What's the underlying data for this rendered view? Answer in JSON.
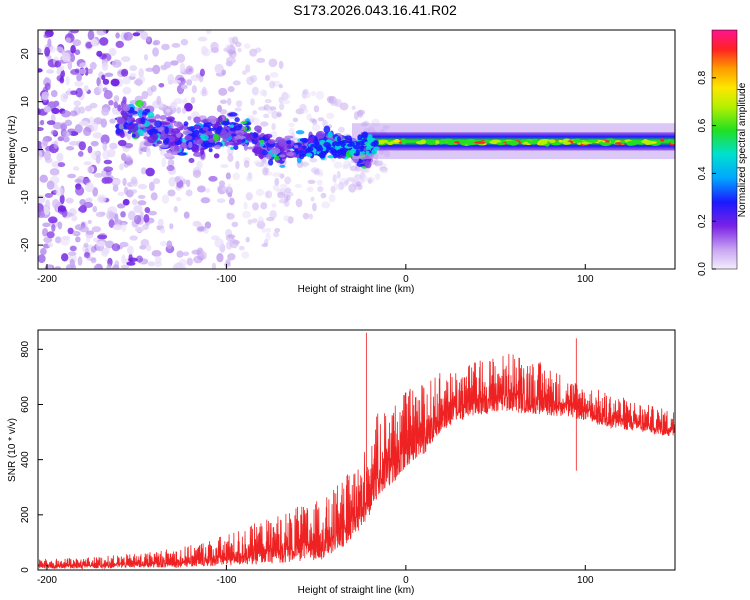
{
  "title": "S173.2026.043.16.41.R02",
  "chart_data": [
    {
      "type": "heatmap",
      "name": "spectrogram",
      "xlabel": "Height of straight line (km)",
      "ylabel": "Frequency (Hz)",
      "xlim": [
        -205,
        150
      ],
      "ylim": [
        -25,
        25
      ],
      "xticks": [
        -200,
        -100,
        0,
        100
      ],
      "yticks": [
        -20,
        -10,
        0,
        10,
        20
      ],
      "colorbar": {
        "label": "Normalized spectral amplitude",
        "range": [
          0,
          1
        ],
        "ticks": [
          0.0,
          0.2,
          0.4,
          0.6,
          0.8
        ]
      },
      "description_regions": [
        {
          "x_range": [
            -205,
            -130
          ],
          "freq_range": [
            -25,
            25
          ],
          "amplitude": 0.15
        },
        {
          "x_range": [
            -160,
            -40
          ],
          "freq_range": [
            -8,
            10
          ],
          "amplitude": 0.3
        },
        {
          "x_range": [
            -40,
            -20
          ],
          "freq_range": [
            -3,
            4
          ],
          "amplitude": 0.4
        },
        {
          "x_range": [
            -20,
            150
          ],
          "freq_range": [
            0,
            3
          ],
          "amplitude": 0.6
        }
      ],
      "peak_frequency_hz": 1.5
    },
    {
      "type": "line",
      "name": "snr",
      "xlabel": "Height of straight line (km)",
      "ylabel": "SNR (10 * v/v)",
      "xlim": [
        -205,
        150
      ],
      "ylim": [
        0,
        870
      ],
      "xticks": [
        -200,
        -100,
        0,
        100
      ],
      "yticks": [
        0,
        200,
        400,
        600,
        800
      ],
      "color": "#ee2222",
      "envelope": {
        "x": [
          -205,
          -180,
          -150,
          -120,
          -100,
          -80,
          -60,
          -45,
          -35,
          -25,
          -20,
          -15,
          -5,
          0,
          10,
          20,
          30,
          40,
          50,
          60,
          70,
          80,
          90,
          100,
          110,
          120,
          130,
          140,
          150
        ],
        "lower": [
          5,
          5,
          8,
          10,
          15,
          20,
          30,
          40,
          80,
          150,
          200,
          260,
          330,
          370,
          420,
          500,
          540,
          560,
          570,
          570,
          565,
          560,
          555,
          540,
          520,
          510,
          500,
          490,
          480
        ],
        "upper": [
          40,
          45,
          60,
          90,
          130,
          180,
          230,
          260,
          330,
          400,
          500,
          580,
          620,
          650,
          680,
          720,
          740,
          760,
          780,
          790,
          770,
          740,
          700,
          670,
          650,
          630,
          610,
          590,
          580
        ]
      },
      "spikes": [
        {
          "x": -22,
          "y": 860
        },
        {
          "x": 95,
          "y": 840
        },
        {
          "x": 95,
          "y": 360
        }
      ]
    }
  ]
}
